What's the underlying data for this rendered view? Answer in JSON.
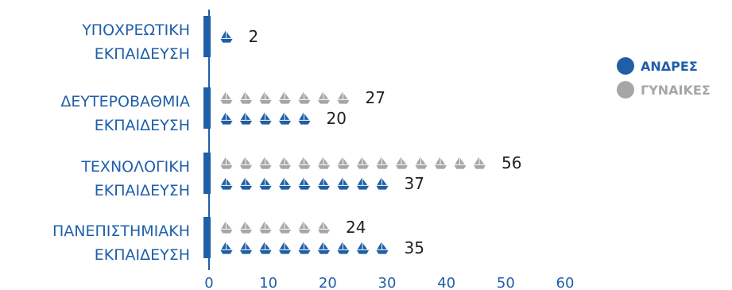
{
  "chart_data": {
    "type": "bar",
    "categories": [
      [
        "ΥΠΟΧΡΕΩΤΙΚΗ",
        "ΕΚΠΑΙΔΕΥΣΗ"
      ],
      [
        "ΔΕΥΤΕΡΟΒΑΘΜΙΑ",
        "ΕΚΠΑΙΔΕΥΣΗ"
      ],
      [
        "ΤΕΧΝΟΛΟΓΙΚΗ",
        "ΕΚΠΑΙΔΕΥΣΗ"
      ],
      [
        "ΠΑΝΕΠΙΣΤΗΜΙΑΚΗ",
        "ΕΚΠΑΙΔΕΥΣΗ"
      ]
    ],
    "series": [
      {
        "name": "ΑΝΔΡΕΣ",
        "values": [
          2,
          20,
          37,
          35
        ],
        "color": "#1f5fa8"
      },
      {
        "name": "ΓΥΝΑΙΚΕΣ",
        "values": [
          null,
          27,
          56,
          24
        ],
        "color": "#a6a6a6"
      }
    ],
    "xlim": [
      0,
      60
    ],
    "xticks": [
      0,
      10,
      20,
      30,
      40,
      50,
      60
    ],
    "orientation": "horizontal",
    "legend_position": "right",
    "icon": "boat-icon",
    "axis_color": "#1f5fa8"
  }
}
